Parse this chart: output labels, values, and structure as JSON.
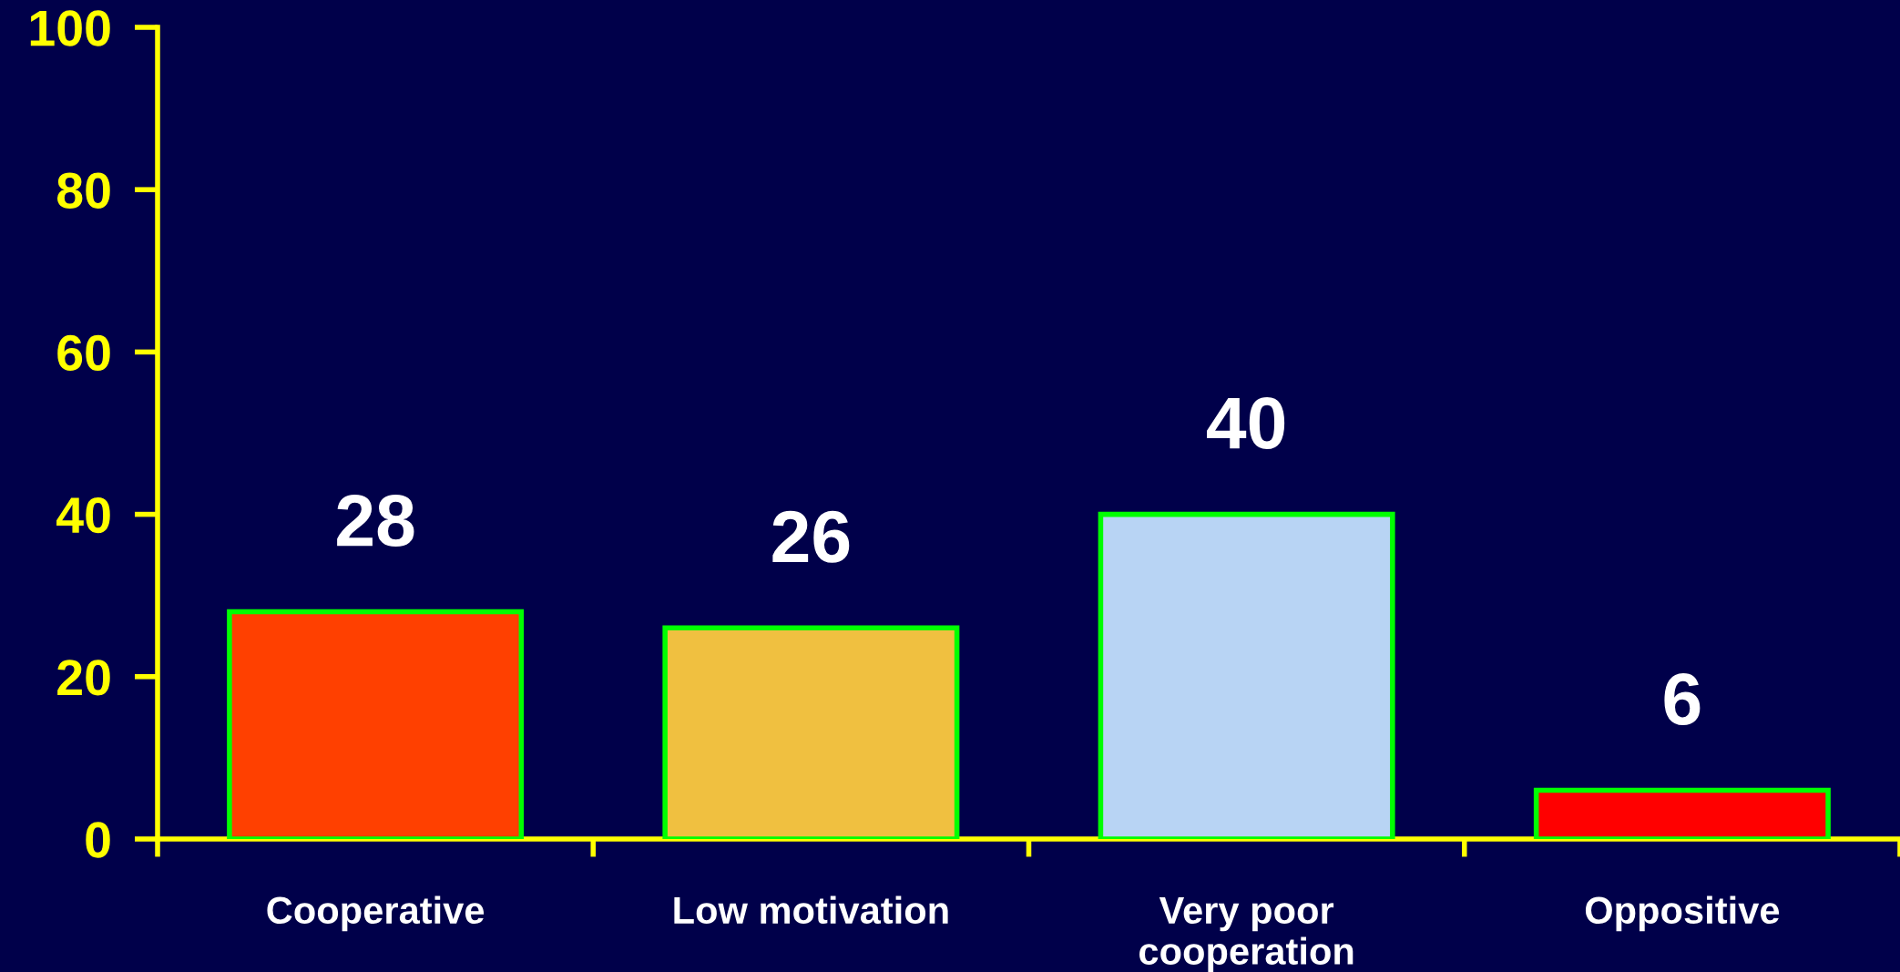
{
  "chart_data": {
    "type": "bar",
    "categories": [
      "Cooperative",
      "Low motivation",
      "Very poor\ncooperation",
      "Oppositive"
    ],
    "values": [
      28,
      26,
      40,
      6
    ],
    "colors": [
      "#ff4000",
      "#f0c040",
      "#b8d4f4",
      "#ff0000"
    ],
    "ylim": [
      0,
      100
    ],
    "yticks": [
      0,
      20,
      40,
      60,
      80,
      100
    ],
    "data_labels": true,
    "grid": false,
    "legend": false
  }
}
